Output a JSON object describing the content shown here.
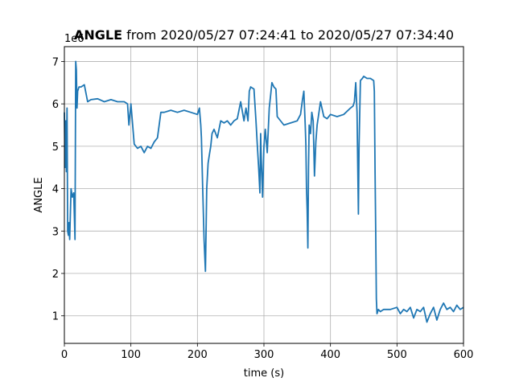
{
  "chart_data": {
    "type": "line",
    "title_bold": "ANGLE",
    "title_rest": " from 2020/05/27 07:24:41 to 2020/05/27 07:34:40",
    "xlabel": "time (s)",
    "ylabel": "ANGLE",
    "offset_label": "1e6",
    "xlim": [
      0,
      600
    ],
    "ylim": [
      0.35,
      7.35
    ],
    "x_ticks": [
      0,
      100,
      200,
      300,
      400,
      500,
      600
    ],
    "y_ticks": [
      1,
      2,
      3,
      4,
      5,
      6,
      7
    ],
    "grid": true,
    "line_color": "#1f77b4",
    "series": [
      {
        "x": [
          0,
          1,
          2,
          3,
          4,
          5,
          6,
          7,
          8,
          10,
          12,
          14,
          16,
          17,
          18,
          19,
          20,
          22,
          25,
          30,
          35,
          40,
          50,
          60,
          70,
          80,
          90,
          95,
          97,
          100,
          105,
          110,
          115,
          120,
          125,
          130,
          135,
          140,
          145,
          150,
          160,
          170,
          180,
          190,
          200,
          203,
          205,
          206,
          208,
          210,
          212,
          214,
          216,
          218,
          220,
          222,
          225,
          230,
          235,
          240,
          245,
          250,
          255,
          260,
          265,
          270,
          273,
          276,
          278,
          280,
          285,
          288,
          290,
          292,
          294,
          295,
          296,
          298,
          300,
          302,
          305,
          308,
          310,
          312,
          315,
          318,
          320,
          330,
          340,
          350,
          355,
          358,
          360,
          362,
          363,
          364,
          365,
          366,
          367,
          368,
          370,
          372,
          374,
          376,
          378,
          380,
          385,
          390,
          395,
          400,
          410,
          420,
          430,
          434,
          436,
          438,
          440,
          441,
          442,
          443,
          445,
          448,
          450,
          455,
          460,
          465,
          466,
          467,
          468,
          469,
          470,
          472,
          475,
          480,
          490,
          500,
          505,
          510,
          515,
          520,
          525,
          530,
          535,
          540,
          545,
          550,
          555,
          560,
          565,
          570,
          575,
          580,
          585,
          590,
          595,
          600
        ],
        "y": [
          5.8,
          4.5,
          5.6,
          4.4,
          5.9,
          3.0,
          2.9,
          3.2,
          2.8,
          4.0,
          3.8,
          3.9,
          2.8,
          7.0,
          6.8,
          5.9,
          6.3,
          6.4,
          6.4,
          6.45,
          6.05,
          6.1,
          6.12,
          6.05,
          6.1,
          6.05,
          6.05,
          6.0,
          5.5,
          6.0,
          5.05,
          4.95,
          5.0,
          4.85,
          5.0,
          4.95,
          5.1,
          5.2,
          5.8,
          5.8,
          5.85,
          5.8,
          5.85,
          5.8,
          5.75,
          5.9,
          5.5,
          5.2,
          4.0,
          2.8,
          2.05,
          4.0,
          4.6,
          4.8,
          5.0,
          5.3,
          5.4,
          5.2,
          5.6,
          5.55,
          5.6,
          5.5,
          5.6,
          5.65,
          6.05,
          5.6,
          5.9,
          5.6,
          6.3,
          6.4,
          6.35,
          5.6,
          5.05,
          4.5,
          3.9,
          5.3,
          4.7,
          3.8,
          5.0,
          5.4,
          4.85,
          5.9,
          6.2,
          6.5,
          6.4,
          6.35,
          5.7,
          5.5,
          5.55,
          5.6,
          5.75,
          6.1,
          6.3,
          5.5,
          5.05,
          4.0,
          3.5,
          2.6,
          4.5,
          5.5,
          5.3,
          5.8,
          5.6,
          4.3,
          5.1,
          5.5,
          6.05,
          5.7,
          5.65,
          5.75,
          5.7,
          5.75,
          5.9,
          5.95,
          6.05,
          6.5,
          5.8,
          4.5,
          3.4,
          5.0,
          6.55,
          6.6,
          6.65,
          6.6,
          6.6,
          6.55,
          6.3,
          4.4,
          3.0,
          1.4,
          1.05,
          1.15,
          1.1,
          1.15,
          1.15,
          1.2,
          1.05,
          1.15,
          1.1,
          1.2,
          0.95,
          1.15,
          1.1,
          1.2,
          0.85,
          1.05,
          1.2,
          0.9,
          1.15,
          1.3,
          1.15,
          1.2,
          1.1,
          1.25,
          1.15,
          1.2
        ]
      }
    ]
  }
}
